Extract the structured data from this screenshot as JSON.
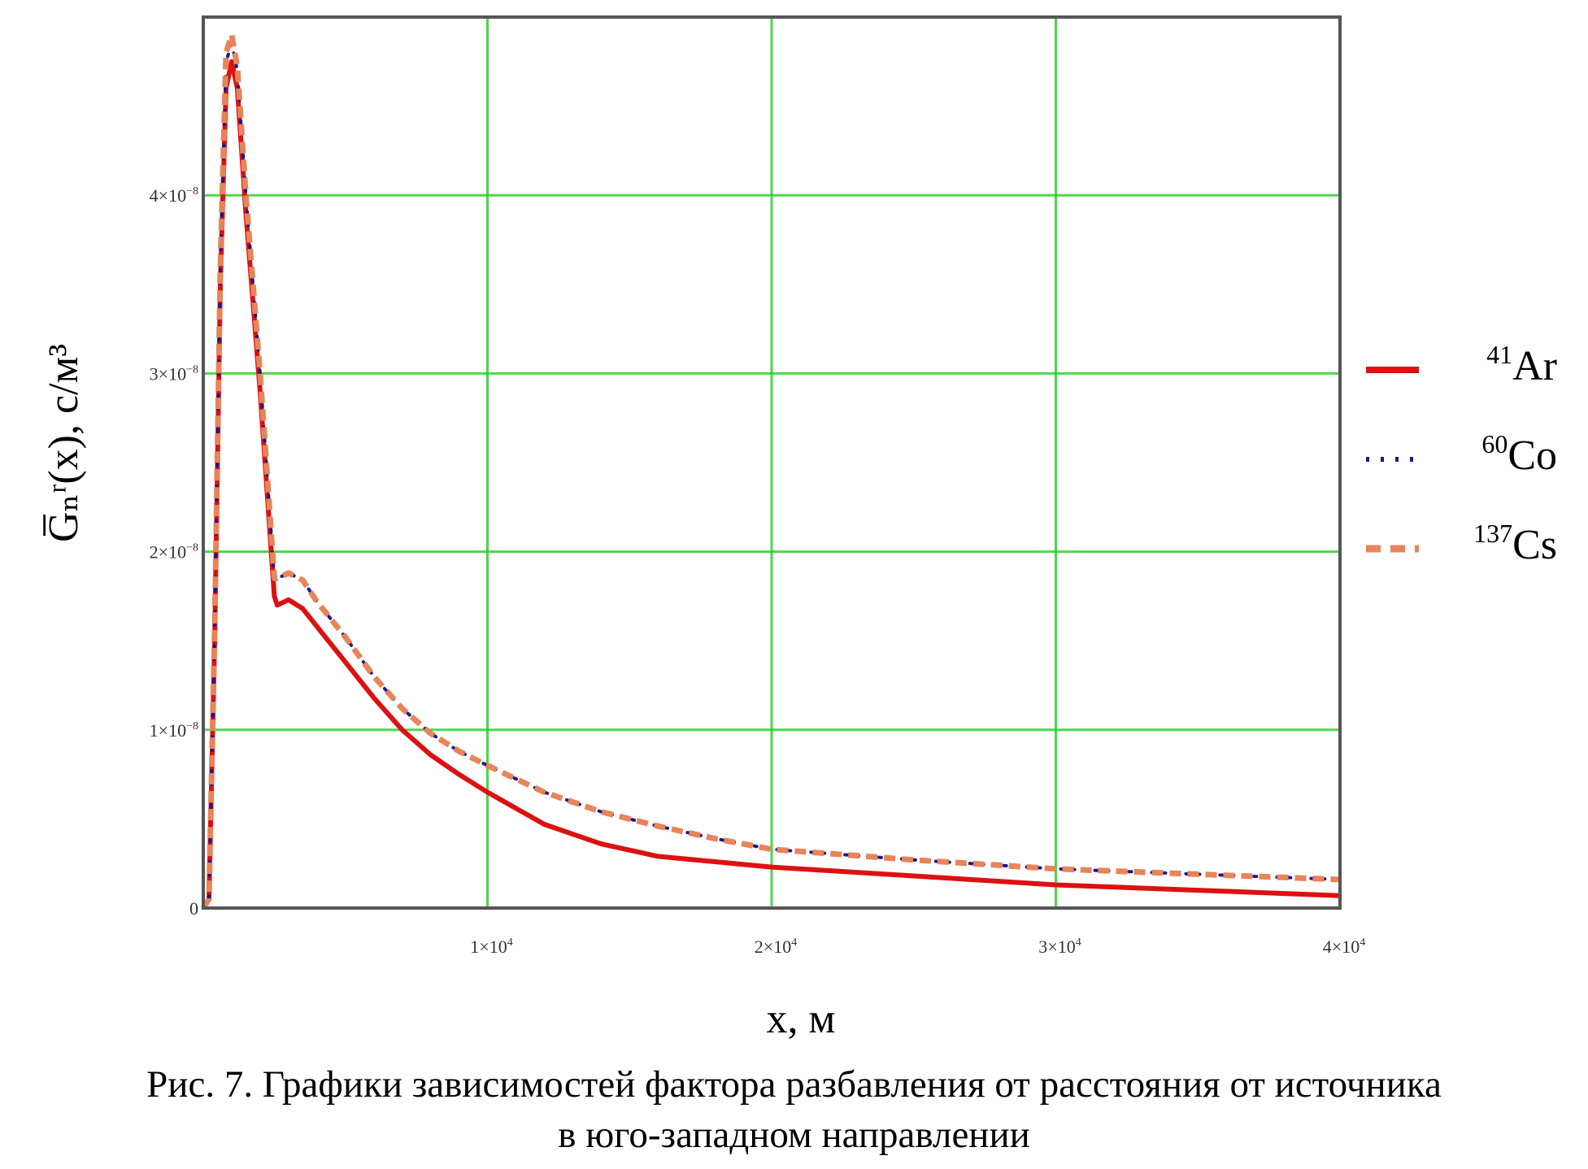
{
  "chart_data": {
    "type": "line",
    "xlabel": "x, м",
    "ylabel": "G̅ₙʳ(x), с/м³",
    "ylabel_parts": {
      "symbol": "G",
      "sub": "n",
      "sup": "r",
      "arg": "(x), с/м",
      "unit_sup": "3"
    },
    "xlim": [
      0,
      40000
    ],
    "ylim": [
      0,
      5e-08
    ],
    "grid": true,
    "grid_color": "#22cc22",
    "legend_placement": "right",
    "x_ticks": [
      {
        "value": 0,
        "base": "0",
        "exp": ""
      },
      {
        "value": 10000,
        "base": "1×10",
        "exp": "4"
      },
      {
        "value": 20000,
        "base": "2×10",
        "exp": "4"
      },
      {
        "value": 30000,
        "base": "3×10",
        "exp": "4"
      },
      {
        "value": 40000,
        "base": "4×10",
        "exp": "4"
      }
    ],
    "y_ticks": [
      {
        "value": 0,
        "base": "0",
        "exp": ""
      },
      {
        "value": 1e-08,
        "base": "1×10",
        "exp": "−8"
      },
      {
        "value": 2e-08,
        "base": "2×10",
        "exp": "−8"
      },
      {
        "value": 3e-08,
        "base": "3×10",
        "exp": "−8"
      },
      {
        "value": 4e-08,
        "base": "4×10",
        "exp": "−8"
      }
    ],
    "x": [
      0,
      200,
      400,
      600,
      800,
      1000,
      1200,
      1500,
      2000,
      2500,
      2600,
      3000,
      3500,
      4000,
      5000,
      6000,
      7000,
      8000,
      9000,
      10000,
      12000,
      14000,
      16000,
      18000,
      20000,
      25000,
      30000,
      35000,
      40000
    ],
    "series": [
      {
        "name": "Ar",
        "mass": "41",
        "color": "#dd1111",
        "style": "solid",
        "values": [
          0,
          5e-10,
          1.5e-08,
          3.5e-08,
          4.6e-08,
          4.75e-08,
          4.6e-08,
          3.9e-08,
          2.9e-08,
          1.75e-08,
          1.7e-08,
          1.73e-08,
          1.68e-08,
          1.58e-08,
          1.38e-08,
          1.18e-08,
          1e-08,
          8.6e-09,
          7.5e-09,
          6.5e-09,
          4.7e-09,
          3.6e-09,
          2.9e-09,
          2.6e-09,
          2.3e-09,
          1.8e-09,
          1.3e-09,
          1e-09,
          7e-10
        ]
      },
      {
        "name": "Co",
        "mass": "60",
        "color": "#1a1a8c",
        "style": "dotted",
        "values": [
          0,
          5e-10,
          1.55e-08,
          3.6e-08,
          4.75e-08,
          4.85e-08,
          4.7e-08,
          4e-08,
          3e-08,
          1.85e-08,
          1.85e-08,
          1.88e-08,
          1.84e-08,
          1.72e-08,
          1.52e-08,
          1.3e-08,
          1.12e-08,
          9.8e-09,
          8.8e-09,
          8e-09,
          6.5e-09,
          5.4e-09,
          4.6e-09,
          3.9e-09,
          3.3e-09,
          2.7e-09,
          2.2e-09,
          1.9e-09,
          1.6e-09
        ]
      },
      {
        "name": "Cs",
        "mass": "137",
        "color": "#e8845a",
        "style": "dashed",
        "values": [
          0,
          5e-10,
          1.55e-08,
          3.6e-08,
          4.8e-08,
          4.9e-08,
          4.72e-08,
          4e-08,
          3e-08,
          1.85e-08,
          1.85e-08,
          1.88e-08,
          1.84e-08,
          1.72e-08,
          1.52e-08,
          1.3e-08,
          1.12e-08,
          9.8e-09,
          8.8e-09,
          8e-09,
          6.5e-09,
          5.4e-09,
          4.6e-09,
          3.9e-09,
          3.3e-09,
          2.7e-09,
          2.2e-09,
          1.9e-09,
          1.6e-09
        ]
      }
    ]
  },
  "caption": {
    "line1": "Рис. 7. Графики зависимостей фактора разбавления от расстояния от источника",
    "line2": "в юго-западном направлении"
  }
}
